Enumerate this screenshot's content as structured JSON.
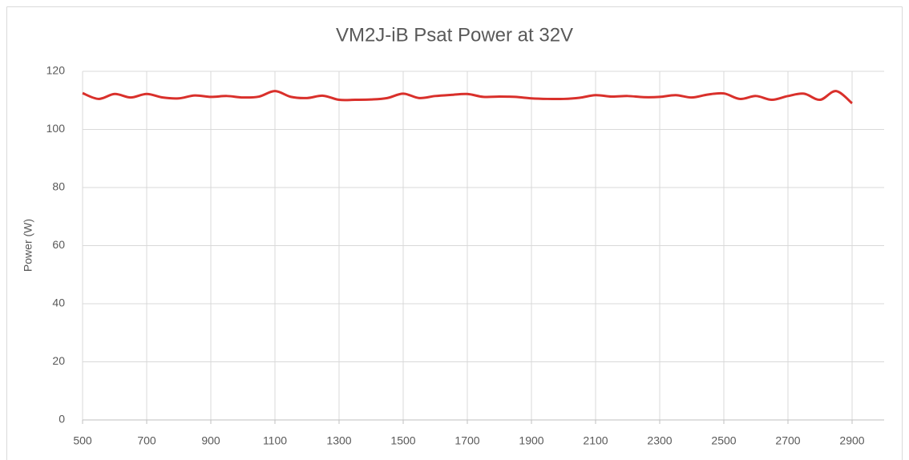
{
  "chart_data": {
    "type": "line",
    "title": "VM2J-iB Psat Power at 32V",
    "y_label": "Power (W)",
    "x": [
      500,
      550,
      600,
      650,
      700,
      750,
      800,
      850,
      900,
      950,
      1000,
      1050,
      1100,
      1150,
      1200,
      1250,
      1300,
      1350,
      1400,
      1450,
      1500,
      1550,
      1600,
      1650,
      1700,
      1750,
      1800,
      1850,
      1900,
      1950,
      2000,
      2050,
      2100,
      2150,
      2200,
      2250,
      2300,
      2350,
      2400,
      2450,
      2500,
      2550,
      2600,
      2650,
      2700,
      2750,
      2800,
      2850,
      2900
    ],
    "series": [
      {
        "name": "Psat",
        "color": "#d9302b",
        "values": [
          112.5,
          110.5,
          112.2,
          111,
          112.2,
          111,
          110.7,
          111.7,
          111.2,
          111.5,
          111,
          111.3,
          113.2,
          111.2,
          110.8,
          111.6,
          110.2,
          110.2,
          110.3,
          110.8,
          112.3,
          110.8,
          111.5,
          111.9,
          112.2,
          111.2,
          111.3,
          111.2,
          110.7,
          110.5,
          110.5,
          110.9,
          111.8,
          111.3,
          111.5,
          111.1,
          111.2,
          111.8,
          111,
          112,
          112.4,
          110.5,
          111.5,
          110.2,
          111.5,
          112.3,
          110.2,
          113.2,
          109
        ]
      }
    ],
    "xlim": [
      500,
      3000
    ],
    "xticks": [
      500,
      700,
      900,
      1100,
      1300,
      1500,
      1700,
      1900,
      2100,
      2300,
      2500,
      2700,
      2900
    ],
    "ylim": [
      0,
      120
    ],
    "yticks": [
      0,
      20,
      40,
      60,
      80,
      100,
      120
    ],
    "grid": true
  }
}
